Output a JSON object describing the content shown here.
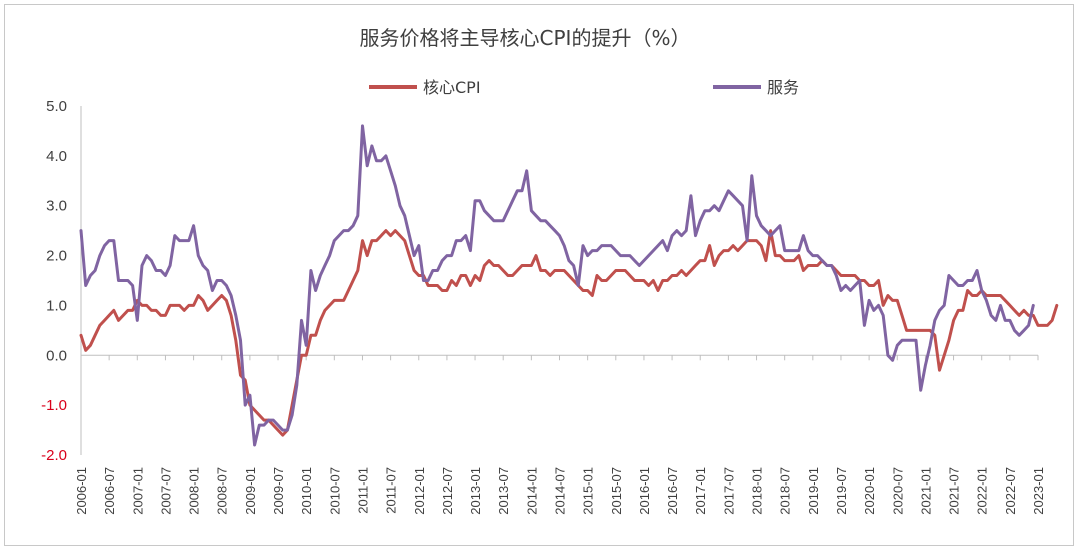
{
  "chart_data": {
    "type": "line",
    "title": "服务价格将主导核心CPI的提升（%）",
    "xlabel": "",
    "ylabel": "",
    "ylim": [
      -2.0,
      5.0
    ],
    "yticks": [
      "5.0",
      "4.0",
      "3.0",
      "2.0",
      "1.0",
      "0.0",
      "-1.0",
      "-2.0"
    ],
    "x_start": "2006-01",
    "x_end": "2023-01",
    "xticks": [
      "2006-01",
      "2006-07",
      "2007-01",
      "2007-07",
      "2008-01",
      "2008-07",
      "2009-01",
      "2009-07",
      "2010-01",
      "2010-07",
      "2011-01",
      "2011-07",
      "2012-01",
      "2012-07",
      "2013-01",
      "2013-07",
      "2014-01",
      "2014-07",
      "2015-01",
      "2015-07",
      "2016-01",
      "2016-07",
      "2017-01",
      "2017-07",
      "2018-01",
      "2018-07",
      "2019-01",
      "2019-07",
      "2020-01",
      "2020-07",
      "2021-01",
      "2021-07",
      "2022-01",
      "2022-07",
      "2023-01"
    ],
    "grid": false,
    "legend_position": "top",
    "series": [
      {
        "name": "核心CPI",
        "color": "#c0504d",
        "values": [
          0.4,
          0.1,
          0.2,
          0.4,
          0.6,
          0.7,
          0.8,
          0.9,
          0.7,
          0.8,
          0.9,
          0.9,
          1.1,
          1.0,
          1.0,
          0.9,
          0.9,
          0.8,
          0.8,
          1.0,
          1.0,
          1.0,
          0.9,
          1.0,
          1.0,
          1.2,
          1.1,
          0.9,
          1.0,
          1.1,
          1.2,
          1.1,
          0.8,
          0.3,
          -0.4,
          -0.5,
          -1.0,
          -1.1,
          -1.2,
          -1.3,
          -1.3,
          -1.4,
          -1.5,
          -1.6,
          -1.5,
          -1.0,
          -0.5,
          0.0,
          0.0,
          0.4,
          0.4,
          0.7,
          0.9,
          1.0,
          1.1,
          1.1,
          1.1,
          1.3,
          1.5,
          1.7,
          2.3,
          2.0,
          2.3,
          2.3,
          2.4,
          2.5,
          2.4,
          2.5,
          2.4,
          2.3,
          2.0,
          1.7,
          1.6,
          1.6,
          1.4,
          1.4,
          1.4,
          1.3,
          1.3,
          1.5,
          1.4,
          1.6,
          1.6,
          1.4,
          1.6,
          1.5,
          1.8,
          1.9,
          1.8,
          1.8,
          1.7,
          1.6,
          1.6,
          1.7,
          1.8,
          1.8,
          1.8,
          2.0,
          1.7,
          1.7,
          1.6,
          1.7,
          1.7,
          1.7,
          1.6,
          1.5,
          1.4,
          1.3,
          1.3,
          1.2,
          1.6,
          1.5,
          1.5,
          1.6,
          1.7,
          1.7,
          1.7,
          1.6,
          1.5,
          1.5,
          1.5,
          1.4,
          1.5,
          1.3,
          1.5,
          1.5,
          1.6,
          1.6,
          1.7,
          1.6,
          1.7,
          1.8,
          1.9,
          1.9,
          2.2,
          1.8,
          2.0,
          2.1,
          2.1,
          2.2,
          2.1,
          2.2,
          2.3,
          2.3,
          2.3,
          2.2,
          1.9,
          2.5,
          2.0,
          2.0,
          1.9,
          1.9,
          1.9,
          2.0,
          1.7,
          1.8,
          1.8,
          1.8,
          1.9,
          1.8,
          1.8,
          1.7,
          1.6,
          1.6,
          1.6,
          1.6,
          1.5,
          1.5,
          1.4,
          1.4,
          1.5,
          1.0,
          1.2,
          1.1,
          1.1,
          0.8,
          0.5,
          0.5,
          0.5,
          0.5,
          0.5,
          0.5,
          0.4,
          -0.3,
          0.0,
          0.3,
          0.7,
          0.9,
          0.9,
          1.3,
          1.2,
          1.2,
          1.3,
          1.2,
          1.2,
          1.2,
          1.2,
          1.1,
          1.0,
          0.9,
          0.8,
          0.9,
          0.8,
          0.8,
          0.6,
          0.6,
          0.6,
          0.7,
          1.0
        ]
      },
      {
        "name": "服务",
        "color": "#8064a2",
        "values": [
          2.5,
          1.4,
          1.6,
          1.7,
          2.0,
          2.2,
          2.3,
          2.3,
          1.5,
          1.5,
          1.5,
          1.4,
          0.7,
          1.8,
          2.0,
          1.9,
          1.7,
          1.7,
          1.6,
          1.8,
          2.4,
          2.3,
          2.3,
          2.3,
          2.6,
          2.0,
          1.8,
          1.7,
          1.3,
          1.5,
          1.5,
          1.4,
          1.2,
          0.8,
          0.3,
          -1.0,
          -0.8,
          -1.8,
          -1.4,
          -1.4,
          -1.3,
          -1.3,
          -1.4,
          -1.5,
          -1.5,
          -1.2,
          -0.6,
          0.7,
          0.2,
          1.7,
          1.3,
          1.6,
          1.8,
          2.0,
          2.3,
          2.4,
          2.5,
          2.5,
          2.6,
          2.8,
          4.6,
          3.8,
          4.2,
          3.9,
          3.9,
          4.0,
          3.7,
          3.4,
          3.0,
          2.8,
          2.4,
          2.0,
          2.2,
          1.5,
          1.5,
          1.7,
          1.7,
          1.9,
          2.0,
          2.0,
          2.3,
          2.3,
          2.4,
          2.1,
          3.1,
          3.1,
          2.9,
          2.8,
          2.7,
          2.7,
          2.7,
          2.9,
          3.1,
          3.3,
          3.3,
          3.7,
          2.9,
          2.8,
          2.7,
          2.7,
          2.6,
          2.5,
          2.4,
          2.2,
          1.9,
          1.8,
          1.4,
          2.2,
          2.0,
          2.1,
          2.1,
          2.2,
          2.2,
          2.2,
          2.1,
          2.0,
          2.0,
          2.0,
          1.9,
          1.8,
          1.9,
          2.0,
          2.1,
          2.2,
          2.3,
          2.1,
          2.4,
          2.5,
          2.4,
          2.5,
          3.2,
          2.4,
          2.7,
          2.9,
          2.9,
          3.0,
          2.9,
          3.1,
          3.3,
          3.2,
          3.1,
          3.0,
          2.3,
          3.6,
          2.8,
          2.6,
          2.5,
          2.4,
          2.5,
          2.6,
          2.1,
          2.1,
          2.1,
          2.1,
          2.4,
          2.1,
          2.0,
          2.0,
          1.9,
          1.8,
          1.8,
          1.6,
          1.3,
          1.4,
          1.3,
          1.4,
          1.5,
          0.6,
          1.1,
          0.9,
          1.0,
          0.8,
          0.0,
          -0.1,
          0.2,
          0.3,
          0.3,
          0.3,
          0.3,
          -0.7,
          -0.2,
          0.2,
          0.7,
          0.9,
          1.0,
          1.6,
          1.5,
          1.4,
          1.4,
          1.5,
          1.5,
          1.7,
          1.3,
          1.1,
          0.8,
          0.7,
          1.0,
          0.7,
          0.7,
          0.5,
          0.4,
          0.5,
          0.6,
          1.0
        ]
      }
    ]
  }
}
